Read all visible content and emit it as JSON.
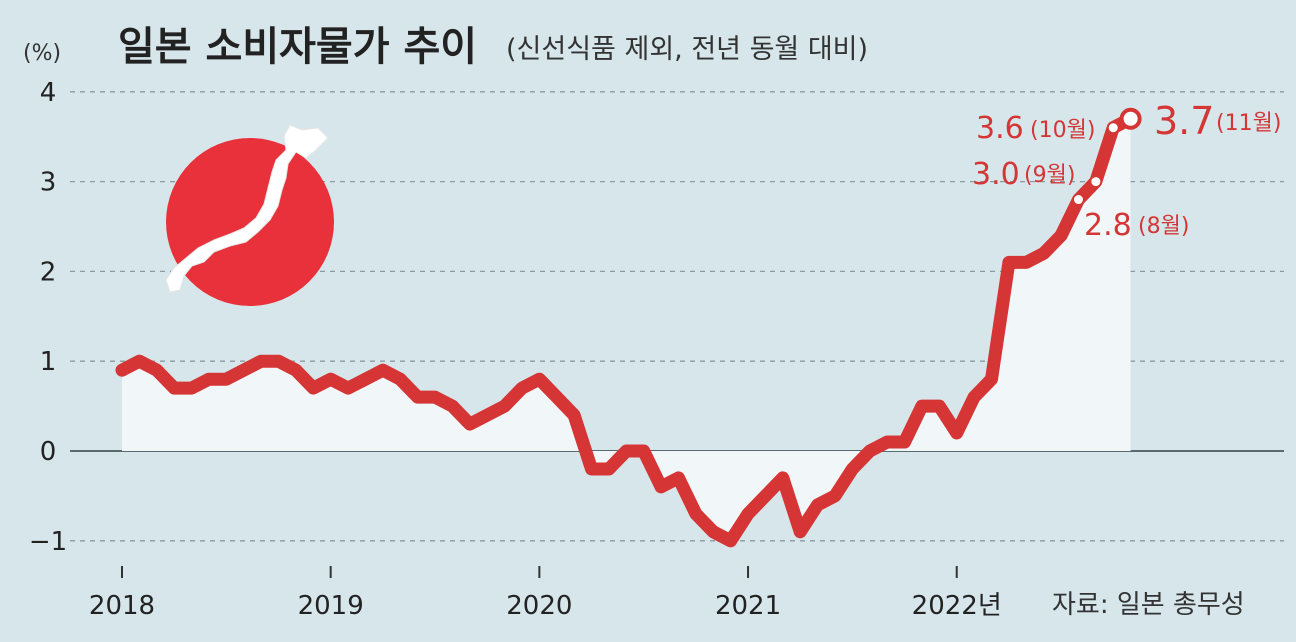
{
  "title": "일본 소비자물가 추이",
  "subtitle": "(신선식품 제외, 전년 동월 대비)",
  "unit": "(%)",
  "source": "자료: 일본 총무성",
  "colors": {
    "background": "#d6e6ea",
    "line": "#d53535",
    "area": "#f1f7f8",
    "grid": "#8a9aa0",
    "flag_red": "#e8313a"
  },
  "icons": {
    "flag": "japan-flag-map-icon"
  },
  "chart_data": {
    "type": "line",
    "title": "일본 소비자물가 추이",
    "subtitle": "(신선식품 제외, 전년 동월 대비)",
    "ylabel": "(%)",
    "xlabel": "",
    "ylim": [
      -1.2,
      4.2
    ],
    "yticks": [
      {
        "value": 4,
        "label": "4"
      },
      {
        "value": 3,
        "label": "3"
      },
      {
        "value": 2,
        "label": "2"
      },
      {
        "value": 1,
        "label": "1"
      },
      {
        "value": 0,
        "label": "0"
      },
      {
        "value": -1,
        "label": "−1"
      }
    ],
    "xticks": [
      {
        "date": "2018-01",
        "label": "2018"
      },
      {
        "date": "2019-01",
        "label": "2019"
      },
      {
        "date": "2020-01",
        "label": "2020"
      },
      {
        "date": "2021-01",
        "label": "2021"
      },
      {
        "date": "2022-01",
        "label": "2022년"
      }
    ],
    "grid": true,
    "series": [
      {
        "x": [
          "2018-01",
          "2018-02",
          "2018-03",
          "2018-04",
          "2018-05",
          "2018-06",
          "2018-07",
          "2018-08",
          "2018-09",
          "2018-10",
          "2018-11",
          "2018-12",
          "2019-01",
          "2019-02",
          "2019-03",
          "2019-04",
          "2019-05",
          "2019-06",
          "2019-07",
          "2019-08",
          "2019-09",
          "2019-10",
          "2019-11",
          "2019-12",
          "2020-01",
          "2020-02",
          "2020-03",
          "2020-04",
          "2020-05",
          "2020-06",
          "2020-07",
          "2020-08",
          "2020-09",
          "2020-10",
          "2020-11",
          "2020-12",
          "2021-01",
          "2021-02",
          "2021-03",
          "2021-04",
          "2021-05",
          "2021-06",
          "2021-07",
          "2021-08",
          "2021-09",
          "2021-10",
          "2021-11",
          "2021-12",
          "2022-01",
          "2022-02",
          "2022-03",
          "2022-04",
          "2022-05",
          "2022-06",
          "2022-07",
          "2022-08",
          "2022-09",
          "2022-10",
          "2022-11"
        ],
        "values": [
          0.9,
          1.0,
          0.9,
          0.7,
          0.7,
          0.8,
          0.8,
          0.9,
          1.0,
          1.0,
          0.9,
          0.7,
          0.8,
          0.7,
          0.8,
          0.9,
          0.8,
          0.6,
          0.6,
          0.5,
          0.3,
          0.4,
          0.5,
          0.7,
          0.8,
          0.6,
          0.4,
          -0.2,
          -0.2,
          0.0,
          0.0,
          -0.4,
          -0.3,
          -0.7,
          -0.9,
          -1.0,
          -0.7,
          -0.5,
          -0.3,
          -0.9,
          -0.6,
          -0.5,
          -0.2,
          0.0,
          0.1,
          0.1,
          0.5,
          0.5,
          0.2,
          0.6,
          0.8,
          2.1,
          2.1,
          2.2,
          2.4,
          2.8,
          3.0,
          3.6,
          3.7
        ]
      }
    ],
    "annotations": [
      {
        "date": "2022-08",
        "value": "2.8",
        "month": "(8월)"
      },
      {
        "date": "2022-09",
        "value": "3.0",
        "month": "(9월)"
      },
      {
        "date": "2022-10",
        "value": "3.6",
        "month": "(10월)"
      },
      {
        "date": "2022-11",
        "value": "3.7",
        "month": "(11월)"
      }
    ]
  }
}
